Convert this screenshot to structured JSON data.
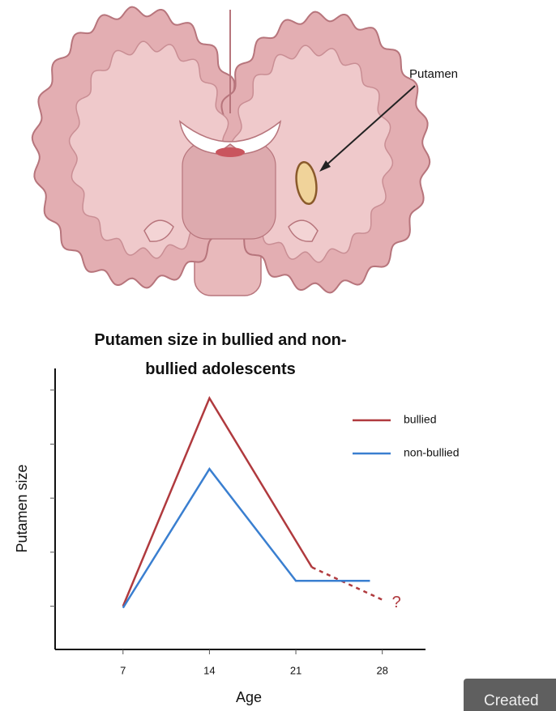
{
  "brain_label": "Putamen",
  "badge": "Created",
  "chart_data": {
    "type": "line",
    "title": "Putamen size in bullied and non-bullied adolescents",
    "xlabel": "Age",
    "ylabel": "Putamen size",
    "xlim": [
      1.5,
      31.5
    ],
    "xticks": [
      7,
      14,
      21,
      28
    ],
    "ylim": [
      0.2,
      5.4
    ],
    "yticks": [
      1,
      2,
      3,
      4,
      5
    ],
    "series": [
      {
        "name": "bullied",
        "color": "#b03a3e",
        "x": [
          7,
          14,
          22.3
        ],
        "values": [
          1.0,
          4.85,
          1.72
        ],
        "dashed_extension": {
          "x": [
            22.3,
            28
          ],
          "values": [
            1.72,
            1.12
          ]
        }
      },
      {
        "name": "non-bullied",
        "color": "#3a7fd0",
        "x": [
          7,
          14,
          21,
          27
        ],
        "values": [
          0.97,
          3.54,
          1.47,
          1.47
        ]
      }
    ],
    "annotation": "?"
  }
}
